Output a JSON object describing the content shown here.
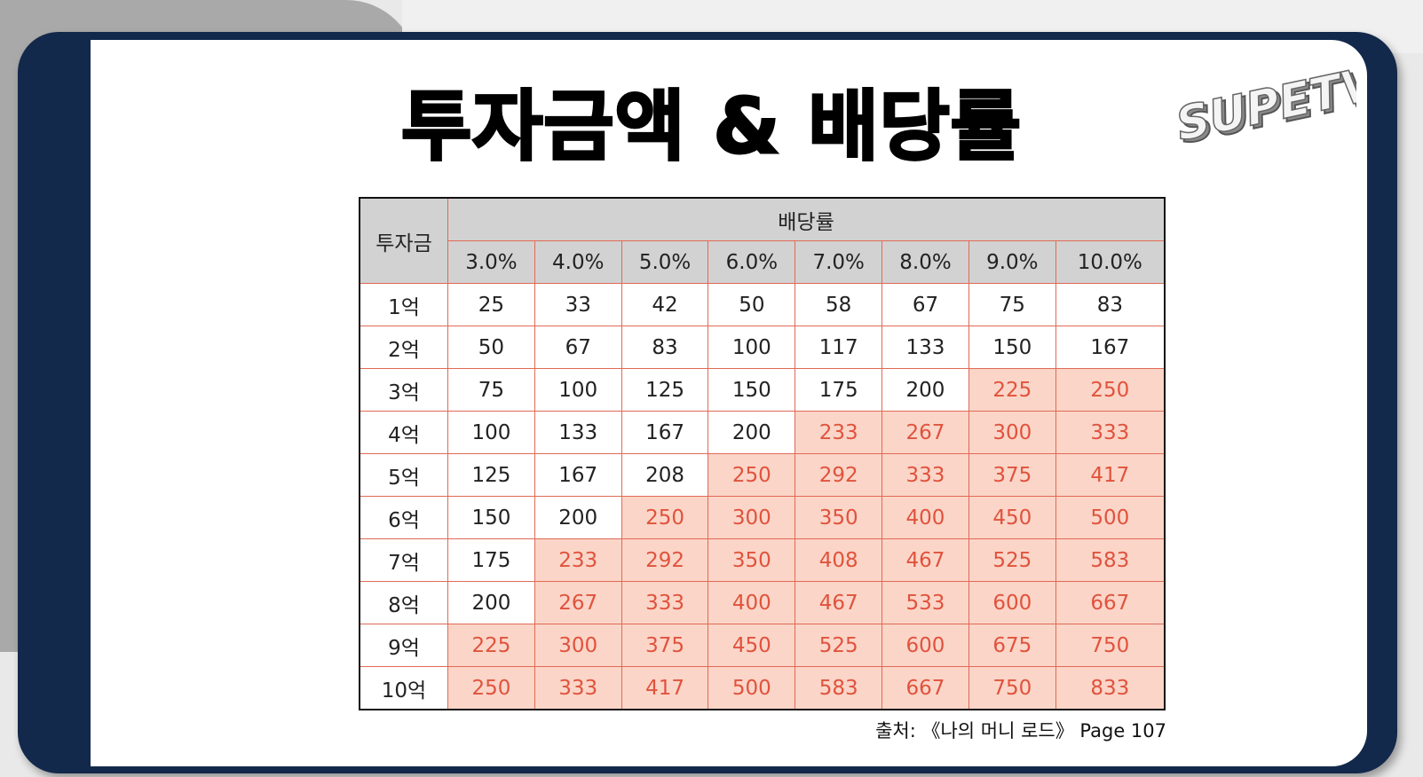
{
  "title": "투자금액 & 배당률",
  "logo": {
    "text": "SUPETV",
    "icon": "supetv-logo"
  },
  "table": {
    "corner_label": "투자금",
    "group_header": "배당률",
    "rates": [
      "3.0%",
      "4.0%",
      "5.0%",
      "6.0%",
      "7.0%",
      "8.0%",
      "9.0%",
      "10.0%"
    ],
    "rows": [
      {
        "label": "1억",
        "values": [
          "25",
          "33",
          "42",
          "50",
          "58",
          "67",
          "75",
          "83"
        ],
        "highlight_from": 8
      },
      {
        "label": "2억",
        "values": [
          "50",
          "67",
          "83",
          "100",
          "117",
          "133",
          "150",
          "167"
        ],
        "highlight_from": 8
      },
      {
        "label": "3억",
        "values": [
          "75",
          "100",
          "125",
          "150",
          "175",
          "200",
          "225",
          "250"
        ],
        "highlight_from": 6
      },
      {
        "label": "4억",
        "values": [
          "100",
          "133",
          "167",
          "200",
          "233",
          "267",
          "300",
          "333"
        ],
        "highlight_from": 4
      },
      {
        "label": "5억",
        "values": [
          "125",
          "167",
          "208",
          "250",
          "292",
          "333",
          "375",
          "417"
        ],
        "highlight_from": 3
      },
      {
        "label": "6억",
        "values": [
          "150",
          "200",
          "250",
          "300",
          "350",
          "400",
          "450",
          "500"
        ],
        "highlight_from": 2
      },
      {
        "label": "7억",
        "values": [
          "175",
          "233",
          "292",
          "350",
          "408",
          "467",
          "525",
          "583"
        ],
        "highlight_from": 1
      },
      {
        "label": "8억",
        "values": [
          "200",
          "267",
          "333",
          "400",
          "467",
          "533",
          "600",
          "667"
        ],
        "highlight_from": 1
      },
      {
        "label": "9억",
        "values": [
          "225",
          "300",
          "375",
          "450",
          "525",
          "600",
          "675",
          "750"
        ],
        "highlight_from": 0
      },
      {
        "label": "10억",
        "values": [
          "250",
          "333",
          "417",
          "500",
          "583",
          "667",
          "750",
          "833"
        ],
        "highlight_from": 0
      }
    ],
    "highlight_bg": "#fbd5c8",
    "highlight_text": "#e0533d"
  },
  "source": "출처: 《나의 머니 로드》 Page 107"
}
